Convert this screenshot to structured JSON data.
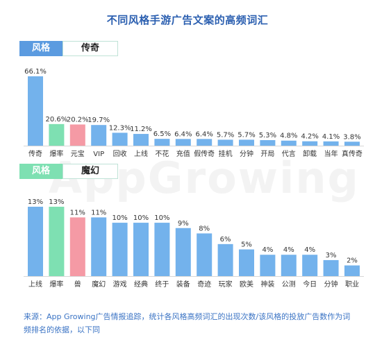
{
  "title": "不同风格手游广告文案的高频词汇",
  "watermark": "AppGrowing",
  "footnote": "来源：App Growing广告情报追踪，统计各风格高频词汇的出现次数/该风格的投放广告数作为词频排名的依据，以下同",
  "colors": {
    "blue": "#73b2ec",
    "green": "#7ee0b2",
    "pink": "#f59aa5",
    "title": "#2b5fb0"
  },
  "chart_data": [
    {
      "type": "bar",
      "tag_left": "风格",
      "tag_right": "传奇",
      "categories": [
        "传奇",
        "爆率",
        "元宝",
        "VIP",
        "回收",
        "上线",
        "不花",
        "充值",
        "假传奇",
        "挂机",
        "分钟",
        "开局",
        "代言",
        "卸载",
        "当年",
        "真传奇"
      ],
      "values": [
        66.1,
        20.6,
        20.2,
        19.7,
        12.3,
        11.2,
        6.5,
        6.4,
        6.4,
        5.7,
        5.7,
        5.3,
        4.8,
        4.2,
        4.1,
        3.8
      ],
      "value_labels": [
        "66.1%",
        "20.6%",
        "20.2%",
        "19.7%",
        "12.3%",
        "11.2%",
        "6.5%",
        "6.4%",
        "6.4%",
        "5.7%",
        "5.7%",
        "5.3%",
        "4.8%",
        "4.2%",
        "4.1%",
        "3.8%"
      ],
      "bar_colors": [
        "blue",
        "green",
        "pink",
        "blue",
        "blue",
        "blue",
        "blue",
        "blue",
        "blue",
        "blue",
        "blue",
        "blue",
        "blue",
        "blue",
        "blue",
        "blue"
      ],
      "ylim": [
        0,
        66.1
      ]
    },
    {
      "type": "bar",
      "tag_left": "风格",
      "tag_right": "魔幻",
      "categories": [
        "上线",
        "爆率",
        "兽",
        "魔幻",
        "游戏",
        "经典",
        "终于",
        "装备",
        "奇迹",
        "玩家",
        "欧美",
        "神装",
        "公测",
        "今日",
        "分钟",
        "职业"
      ],
      "values": [
        13,
        13,
        11,
        11,
        10,
        10,
        10,
        9,
        8,
        6,
        5,
        4,
        4,
        4,
        3,
        2
      ],
      "value_labels": [
        "13%",
        "13%",
        "11%",
        "11%",
        "10%",
        "10%",
        "10%",
        "9%",
        "8%",
        "6%",
        "5%",
        "4%",
        "4%",
        "4%",
        "3%",
        "2%"
      ],
      "bar_colors": [
        "blue",
        "green",
        "pink",
        "blue",
        "blue",
        "blue",
        "blue",
        "blue",
        "blue",
        "blue",
        "blue",
        "blue",
        "blue",
        "blue",
        "blue",
        "blue"
      ],
      "ylim": [
        0,
        13
      ]
    }
  ]
}
